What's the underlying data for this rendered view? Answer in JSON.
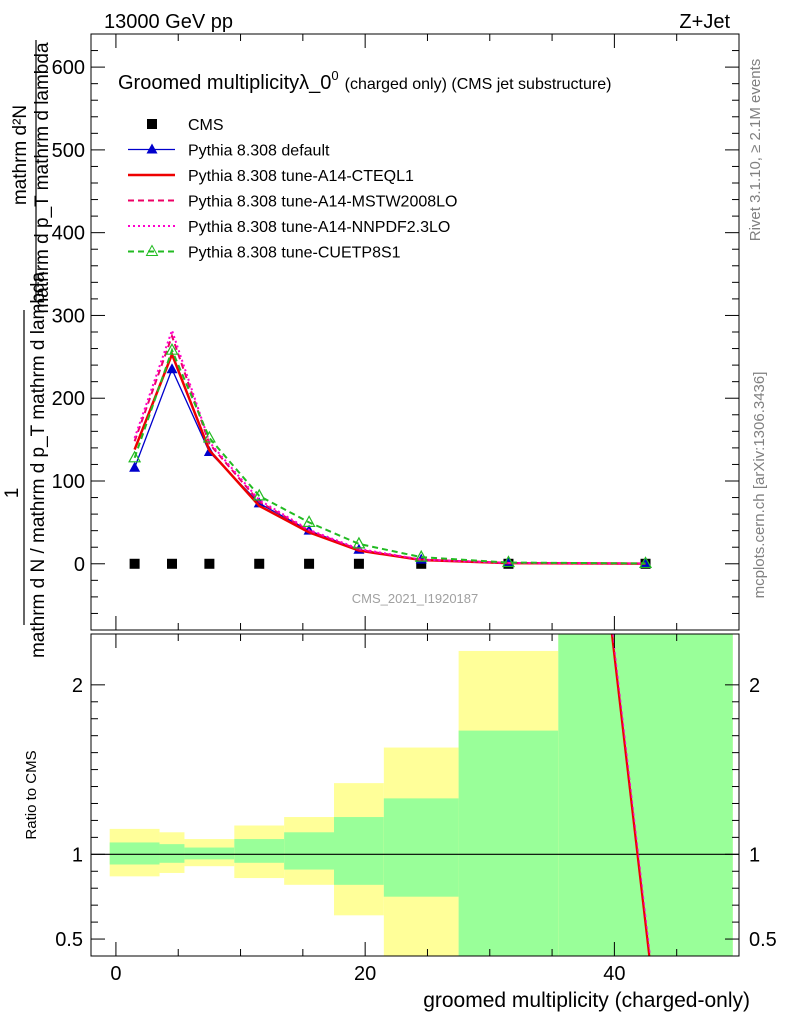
{
  "header": {
    "left": "13000 GeV pp",
    "right": "Z+Jet"
  },
  "side_labels": {
    "rivet": "Rivet 3.1.10, ≥ 2.1M events",
    "mcplots": "mcplots.cern.ch [arXiv:1306.3436]"
  },
  "chart_data": [
    {
      "type": "line",
      "title_main": "Groomed multiplicityλ_0",
      "title_sup": "0",
      "title_tail": "(charged only) (CMS jet substructure)",
      "ylabel": {
        "numerator": "mathrm d²N",
        "denominator": "mathrm d p_T mathrm d lambda",
        "lower": "mathrm d N / mathrm d p_T mathrm d lambda",
        "one": "1"
      },
      "watermark": "CMS_2021_I1920187",
      "xlim": [
        -2,
        50
      ],
      "ylim": [
        -80,
        640
      ],
      "yticks": [
        0,
        100,
        200,
        300,
        400,
        500,
        600
      ],
      "x": [
        1.5,
        4.5,
        7.5,
        11.5,
        15.5,
        19.5,
        24.5,
        31.5,
        42.5
      ],
      "series": [
        {
          "name": "CMS",
          "color": "#000000",
          "marker": "square",
          "dash": "none",
          "values": [
            0,
            0,
            0,
            0,
            0,
            0,
            0,
            0,
            0
          ]
        },
        {
          "name": "Pythia 8.308 default",
          "color": "#0000cc",
          "marker": "triangle-filled",
          "dash": "solid",
          "values": [
            116,
            235,
            135,
            73,
            40,
            17,
            5,
            1,
            0.3
          ]
        },
        {
          "name": "Pythia 8.308 tune-A14-CTEQL1",
          "color": "#ee0000",
          "marker": "none",
          "dash": "solid-thick",
          "values": [
            138,
            253,
            137,
            70,
            38,
            16,
            4.5,
            0.8,
            0.2
          ]
        },
        {
          "name": "Pythia 8.308 tune-A14-MSTW2008LO",
          "color": "#ee0066",
          "marker": "none",
          "dash": "dashed",
          "values": [
            148,
            275,
            145,
            75,
            40,
            17,
            5,
            1,
            0.3
          ]
        },
        {
          "name": "Pythia 8.308 tune-A14-NNPDF2.3LO",
          "color": "#ff00cc",
          "marker": "none",
          "dash": "dotted",
          "values": [
            152,
            282,
            147,
            77,
            41,
            18,
            5,
            1,
            0.3
          ]
        },
        {
          "name": "Pythia 8.308 tune-CUETP8S1",
          "color": "#22bb22",
          "marker": "triangle-open",
          "dash": "dashed",
          "values": [
            128,
            258,
            152,
            82,
            50,
            24,
            8,
            1.5,
            0.4
          ]
        }
      ]
    },
    {
      "type": "area",
      "ylabel": "Ratio to CMS",
      "xlabel": "groomed multiplicity (charged-only)",
      "xlim": [
        -2,
        50
      ],
      "ylim": [
        0.4,
        2.3
      ],
      "yticks": [
        0.5,
        1,
        2
      ],
      "xticks": [
        0,
        20,
        40
      ],
      "reference": 1,
      "bands": [
        {
          "x0": -0.5,
          "x1": 3.5,
          "green": [
            0.94,
            1.07
          ],
          "yellow": [
            0.87,
            1.15
          ]
        },
        {
          "x0": 3.5,
          "x1": 5.5,
          "green": [
            0.95,
            1.06
          ],
          "yellow": [
            0.89,
            1.13
          ]
        },
        {
          "x0": 5.5,
          "x1": 9.5,
          "green": [
            0.97,
            1.04
          ],
          "yellow": [
            0.93,
            1.09
          ]
        },
        {
          "x0": 9.5,
          "x1": 13.5,
          "green": [
            0.95,
            1.09
          ],
          "yellow": [
            0.86,
            1.17
          ]
        },
        {
          "x0": 13.5,
          "x1": 17.5,
          "green": [
            0.91,
            1.13
          ],
          "yellow": [
            0.82,
            1.22
          ]
        },
        {
          "x0": 17.5,
          "x1": 21.5,
          "green": [
            0.82,
            1.22
          ],
          "yellow": [
            0.64,
            1.42
          ]
        },
        {
          "x0": 21.5,
          "x1": 27.5,
          "green": [
            0.75,
            1.33
          ],
          "yellow": [
            0.35,
            1.63
          ]
        },
        {
          "x0": 27.5,
          "x1": 35.5,
          "green": [
            0.35,
            1.73
          ],
          "yellow": [
            0.35,
            2.2
          ]
        },
        {
          "x0": 35.5,
          "x1": 49.5,
          "green": [
            0.35,
            2.4
          ],
          "yellow": [
            0.35,
            2.4
          ]
        }
      ],
      "ratio_line": {
        "x": [
          39.8,
          42.8
        ],
        "y": [
          2.45,
          0.35
        ]
      }
    }
  ]
}
